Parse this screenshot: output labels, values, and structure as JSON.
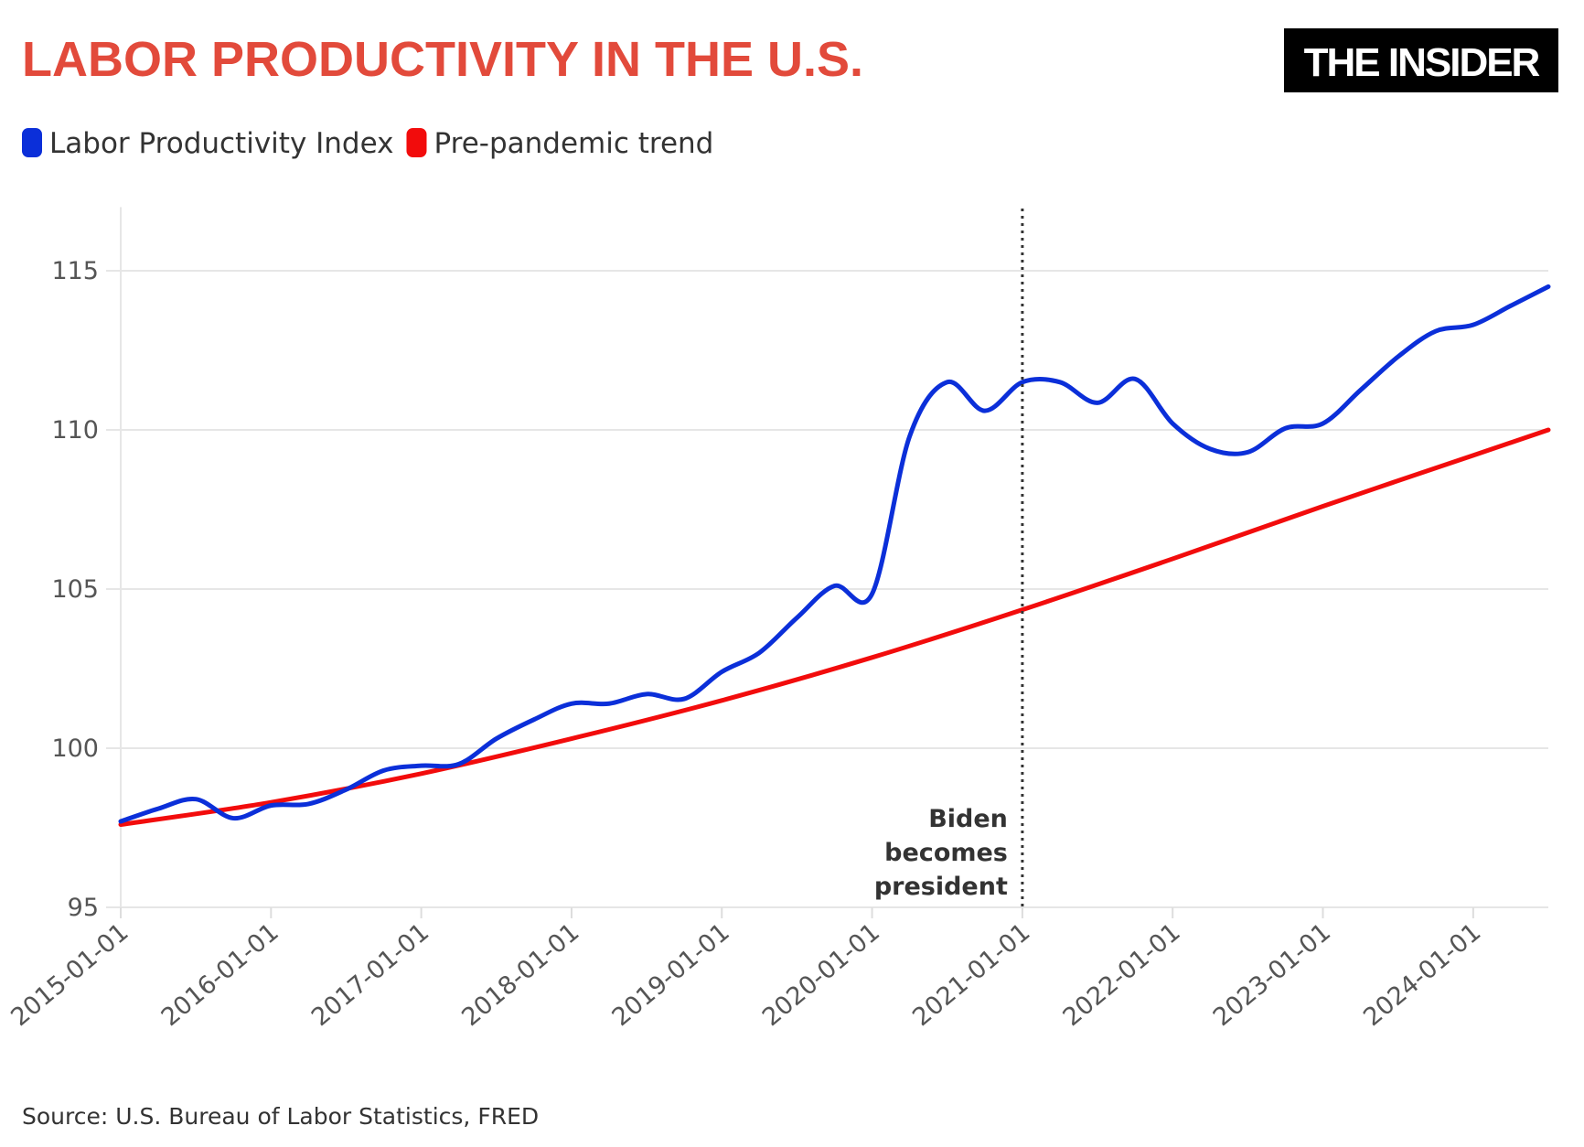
{
  "header": {
    "title": "LABOR PRODUCTIVITY IN THE U.S.",
    "logo": "THE INSIDER"
  },
  "footer": {
    "source": "Source: U.S. Bureau of Labor Statistics, FRED"
  },
  "chart_data": {
    "type": "line",
    "title": "LABOR PRODUCTIVITY IN THE U.S.",
    "xlabel": "",
    "ylabel": "",
    "xlim": [
      "2015-01-01",
      "2024-07-01"
    ],
    "ylim": [
      95,
      117
    ],
    "yticks": [
      95,
      100,
      105,
      110,
      115
    ],
    "xticks": [
      "2015-01-01",
      "2016-01-01",
      "2017-01-01",
      "2018-01-01",
      "2019-01-01",
      "2020-01-01",
      "2021-01-01",
      "2022-01-01",
      "2023-01-01",
      "2024-01-01"
    ],
    "grid": "horizontal",
    "legend": "top-left",
    "series": [
      {
        "name": "Labor Productivity Index",
        "color": "#0b2fd9",
        "x": [
          "2015-01-01",
          "2015-04-01",
          "2015-07-01",
          "2015-10-01",
          "2016-01-01",
          "2016-04-01",
          "2016-07-01",
          "2016-10-01",
          "2017-01-01",
          "2017-04-01",
          "2017-07-01",
          "2017-10-01",
          "2018-01-01",
          "2018-04-01",
          "2018-07-01",
          "2018-10-01",
          "2019-01-01",
          "2019-04-01",
          "2019-07-01",
          "2019-10-01",
          "2020-01-01",
          "2020-04-01",
          "2020-07-01",
          "2020-10-01",
          "2021-01-01",
          "2021-04-01",
          "2021-07-01",
          "2021-10-01",
          "2022-01-01",
          "2022-04-01",
          "2022-07-01",
          "2022-10-01",
          "2023-01-01",
          "2023-04-01",
          "2023-07-01",
          "2023-10-01",
          "2024-01-01",
          "2024-04-01",
          "2024-07-01"
        ],
        "values": [
          97.7,
          98.1,
          98.4,
          97.8,
          98.2,
          98.25,
          98.7,
          99.3,
          99.45,
          99.5,
          100.3,
          100.9,
          101.4,
          101.4,
          101.7,
          101.55,
          102.4,
          103.0,
          104.1,
          105.1,
          104.85,
          109.8,
          111.5,
          110.6,
          111.5,
          111.5,
          110.85,
          111.6,
          110.2,
          109.4,
          109.3,
          110.05,
          110.2,
          111.25,
          112.3,
          113.1,
          113.3,
          113.9,
          114.5
        ]
      },
      {
        "name": "Pre-pandemic trend",
        "color": "#f20c0c",
        "x": [
          "2015-01-01",
          "2016-01-01",
          "2017-01-01",
          "2018-01-01",
          "2019-01-01",
          "2020-01-01",
          "2021-01-01",
          "2022-01-01",
          "2023-01-01",
          "2024-01-01",
          "2024-07-01"
        ],
        "values": [
          97.6,
          98.3,
          99.2,
          100.3,
          101.5,
          102.85,
          104.35,
          105.95,
          107.6,
          109.2,
          110.0
        ]
      }
    ],
    "annotations": [
      {
        "x": "2021-01-01",
        "style": "dotted vertical line",
        "lines": [
          "Biden",
          "becomes",
          "president"
        ]
      }
    ]
  }
}
